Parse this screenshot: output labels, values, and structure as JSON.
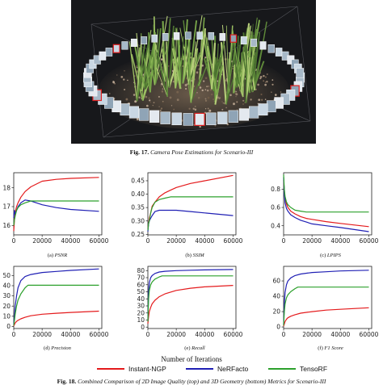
{
  "figure17": {
    "label": "Fig. 17.",
    "caption": "Camera Pose Estimations for Scenario-III"
  },
  "figure18": {
    "label": "Fig. 18.",
    "caption": "Combined Comparison of 2D Image Quality (top) and 3D Geometry (bottom) Metrics for Scenario-III"
  },
  "shared_xlabel": "Number of Iterations",
  "legend": [
    {
      "name": "Instant-NGP",
      "color": "#e41a1c"
    },
    {
      "name": "NeRFacto",
      "color": "#1f1fb4"
    },
    {
      "name": "TensoRF",
      "color": "#2ca02c"
    }
  ],
  "chart_data": [
    {
      "type": "line",
      "subcaption_letter": "(a)",
      "subcaption": "PSNR",
      "xlim": [
        0,
        62000
      ],
      "ylim": [
        15.5,
        18.8
      ],
      "xticks": [
        "0",
        "20000",
        "40000",
        "60000"
      ],
      "xtick_values": [
        0,
        20000,
        40000,
        60000
      ],
      "yticks": [
        "16",
        "17",
        "18"
      ],
      "ytick_values": [
        16,
        17,
        18
      ],
      "series": [
        {
          "name": "Instant-NGP",
          "x": [
            0,
            500,
            1000,
            2000,
            3000,
            5000,
            8000,
            12000,
            16000,
            20000,
            30000,
            40000,
            60000
          ],
          "y": [
            15.7,
            16.3,
            16.7,
            17.0,
            17.2,
            17.5,
            17.8,
            18.05,
            18.2,
            18.35,
            18.45,
            18.5,
            18.55
          ]
        },
        {
          "name": "NeRFacto",
          "x": [
            0,
            500,
            1000,
            2000,
            3000,
            5000,
            8000,
            12000,
            16000,
            20000,
            30000,
            40000,
            60000
          ],
          "y": [
            16.4,
            16.8,
            16.6,
            16.8,
            17.0,
            17.2,
            17.35,
            17.3,
            17.2,
            17.1,
            16.95,
            16.85,
            16.75
          ]
        },
        {
          "name": "TensoRF",
          "x": [
            0,
            500,
            1000,
            2000,
            3000,
            5000,
            8000,
            12000,
            16000,
            20000,
            30000,
            40000,
            60000
          ],
          "y": [
            16.0,
            16.3,
            16.5,
            16.8,
            16.95,
            17.1,
            17.2,
            17.3,
            17.3,
            17.3,
            17.3,
            17.3,
            17.3
          ]
        }
      ]
    },
    {
      "type": "line",
      "subcaption_letter": "(b)",
      "subcaption": "SSIM",
      "xlim": [
        0,
        62000
      ],
      "ylim": [
        0.248,
        0.48
      ],
      "xticks": [
        "0",
        "20000",
        "40000",
        "60000"
      ],
      "xtick_values": [
        0,
        20000,
        40000,
        60000
      ],
      "yticks": [
        "0.25",
        "0.30",
        "0.35",
        "0.40",
        "0.45"
      ],
      "ytick_values": [
        0.25,
        0.3,
        0.35,
        0.4,
        0.45
      ],
      "series": [
        {
          "name": "Instant-NGP",
          "x": [
            0,
            500,
            1000,
            2000,
            3000,
            5000,
            8000,
            12000,
            16000,
            20000,
            30000,
            40000,
            60000
          ],
          "y": [
            0.27,
            0.29,
            0.31,
            0.33,
            0.355,
            0.37,
            0.39,
            0.405,
            0.415,
            0.425,
            0.44,
            0.45,
            0.47
          ]
        },
        {
          "name": "NeRFacto",
          "x": [
            0,
            500,
            1000,
            2000,
            3000,
            5000,
            8000,
            12000,
            16000,
            20000,
            30000,
            40000,
            60000
          ],
          "y": [
            0.26,
            0.29,
            0.3,
            0.31,
            0.32,
            0.335,
            0.34,
            0.34,
            0.34,
            0.34,
            0.335,
            0.33,
            0.32
          ]
        },
        {
          "name": "TensoRF",
          "x": [
            0,
            500,
            1000,
            2000,
            3000,
            5000,
            8000,
            12000,
            16000,
            20000,
            30000,
            40000,
            60000
          ],
          "y": [
            0.265,
            0.29,
            0.3,
            0.33,
            0.35,
            0.37,
            0.38,
            0.385,
            0.39,
            0.39,
            0.39,
            0.39,
            0.39
          ]
        }
      ]
    },
    {
      "type": "line",
      "subcaption_letter": "(c)",
      "subcaption": "LPIPS",
      "xlim": [
        0,
        62000
      ],
      "ylim": [
        0.3,
        0.98
      ],
      "xticks": [
        "0",
        "20000",
        "40000",
        "60000"
      ],
      "xtick_values": [
        0,
        20000,
        40000,
        60000
      ],
      "yticks": [
        "0.4",
        "0.6",
        "0.8"
      ],
      "ytick_values": [
        0.4,
        0.6,
        0.8
      ],
      "series": [
        {
          "name": "Instant-NGP",
          "x": [
            0,
            500,
            1000,
            2000,
            3000,
            5000,
            8000,
            12000,
            16000,
            20000,
            30000,
            40000,
            60000
          ],
          "y": [
            0.9,
            0.78,
            0.7,
            0.64,
            0.6,
            0.56,
            0.53,
            0.5,
            0.48,
            0.47,
            0.445,
            0.425,
            0.39
          ]
        },
        {
          "name": "NeRFacto",
          "x": [
            0,
            500,
            1000,
            2000,
            3000,
            5000,
            8000,
            12000,
            16000,
            20000,
            30000,
            40000,
            60000
          ],
          "y": [
            0.93,
            0.75,
            0.65,
            0.59,
            0.56,
            0.52,
            0.49,
            0.46,
            0.44,
            0.42,
            0.4,
            0.38,
            0.335
          ]
        },
        {
          "name": "TensoRF",
          "x": [
            0,
            500,
            1000,
            2000,
            3000,
            5000,
            8000,
            12000,
            16000,
            20000,
            30000,
            40000,
            60000
          ],
          "y": [
            0.96,
            0.8,
            0.72,
            0.66,
            0.63,
            0.6,
            0.57,
            0.56,
            0.55,
            0.55,
            0.55,
            0.55,
            0.55
          ]
        }
      ]
    },
    {
      "type": "line",
      "subcaption_letter": "(d)",
      "subcaption": "Precision",
      "xlim": [
        0,
        62000
      ],
      "ylim": [
        -2,
        59
      ],
      "xticks": [
        "0",
        "20000",
        "40000",
        "60000"
      ],
      "xtick_values": [
        0,
        20000,
        40000,
        60000
      ],
      "yticks": [
        "0",
        "10",
        "20",
        "30",
        "40",
        "50"
      ],
      "ytick_values": [
        0,
        10,
        20,
        30,
        40,
        50
      ],
      "series": [
        {
          "name": "Instant-NGP",
          "x": [
            0,
            500,
            1000,
            2000,
            3000,
            5000,
            8000,
            12000,
            20000,
            30000,
            40000,
            60000
          ],
          "y": [
            0.5,
            2,
            3.5,
            5,
            6,
            7.5,
            9,
            10.5,
            12,
            13,
            13.8,
            15
          ]
        },
        {
          "name": "NeRFacto",
          "x": [
            0,
            500,
            1000,
            2000,
            3000,
            5000,
            8000,
            12000,
            20000,
            30000,
            40000,
            60000
          ],
          "y": [
            2,
            10,
            20,
            30,
            38,
            45,
            49,
            51,
            53,
            54,
            55,
            56.5
          ]
        },
        {
          "name": "TensoRF",
          "x": [
            0,
            500,
            1000,
            2000,
            3000,
            5000,
            8000,
            10000,
            20000,
            30000,
            40000,
            60000
          ],
          "y": [
            1,
            6,
            12,
            20,
            26,
            32,
            38,
            40.5,
            40.5,
            40.5,
            40.5,
            40.5
          ]
        }
      ]
    },
    {
      "type": "line",
      "subcaption_letter": "(e)",
      "subcaption": "Recall",
      "xlim": [
        0,
        62000
      ],
      "ylim": [
        -2,
        86
      ],
      "xticks": [
        "0",
        "20000",
        "40000",
        "60000"
      ],
      "xtick_values": [
        0,
        20000,
        40000,
        60000
      ],
      "yticks": [
        "0",
        "10",
        "20",
        "30",
        "40",
        "50",
        "60",
        "70",
        "80"
      ],
      "ytick_values": [
        0,
        10,
        20,
        30,
        40,
        50,
        60,
        70,
        80
      ],
      "series": [
        {
          "name": "Instant-NGP",
          "x": [
            0,
            500,
            1000,
            2000,
            3000,
            5000,
            8000,
            12000,
            20000,
            30000,
            40000,
            60000
          ],
          "y": [
            5,
            15,
            22,
            28,
            33,
            38,
            43,
            47,
            52,
            55,
            57,
            59
          ]
        },
        {
          "name": "NeRFacto",
          "x": [
            0,
            500,
            1000,
            2000,
            3000,
            5000,
            8000,
            12000,
            20000,
            30000,
            40000,
            60000
          ],
          "y": [
            10,
            50,
            63,
            70,
            73,
            76,
            78,
            79,
            80,
            80.5,
            81,
            81.5
          ]
        },
        {
          "name": "TensoRF",
          "x": [
            0,
            500,
            1000,
            2000,
            3000,
            5000,
            8000,
            10000,
            20000,
            30000,
            40000,
            60000
          ],
          "y": [
            8,
            40,
            52,
            60,
            64,
            68,
            71,
            72.5,
            72.5,
            72.5,
            72.5,
            72.5
          ]
        }
      ]
    },
    {
      "type": "line",
      "subcaption_letter": "(f)",
      "subcaption": "F1 Score",
      "xlim": [
        0,
        62000
      ],
      "ylim": [
        -2,
        79
      ],
      "xticks": [
        "0",
        "20000",
        "40000",
        "60000"
      ],
      "xtick_values": [
        0,
        20000,
        40000,
        60000
      ],
      "yticks": [
        "0",
        "20",
        "40",
        "60"
      ],
      "ytick_values": [
        0,
        20,
        40,
        60
      ],
      "series": [
        {
          "name": "Instant-NGP",
          "x": [
            0,
            500,
            1000,
            2000,
            3000,
            5000,
            8000,
            12000,
            20000,
            30000,
            40000,
            60000
          ],
          "y": [
            1,
            4,
            7,
            10,
            12,
            14,
            16,
            18,
            20,
            22,
            23,
            25
          ]
        },
        {
          "name": "NeRFacto",
          "x": [
            0,
            500,
            1000,
            2000,
            3000,
            5000,
            8000,
            12000,
            20000,
            30000,
            40000,
            60000
          ],
          "y": [
            3,
            30,
            45,
            55,
            60,
            64,
            67,
            69,
            71,
            72,
            73,
            74
          ]
        },
        {
          "name": "TensoRF",
          "x": [
            0,
            500,
            1000,
            2000,
            3000,
            5000,
            8000,
            10000,
            20000,
            30000,
            40000,
            60000
          ],
          "y": [
            2,
            20,
            30,
            38,
            42,
            46,
            50,
            52,
            52,
            52,
            52,
            52
          ]
        }
      ]
    }
  ]
}
